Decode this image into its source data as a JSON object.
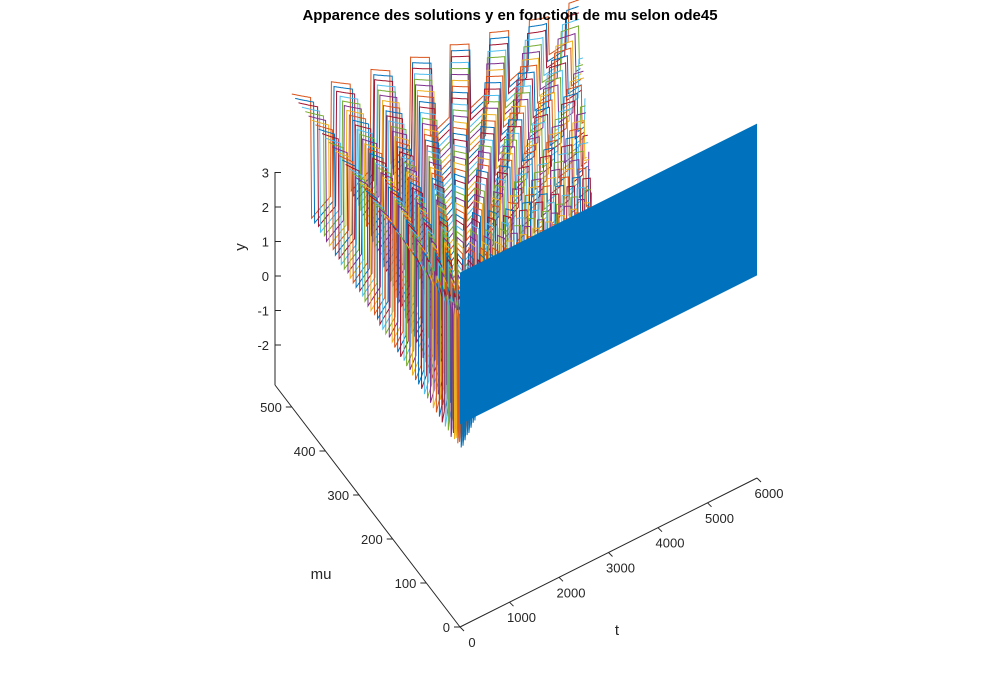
{
  "chart_data": {
    "type": "line",
    "title": "Apparence des solutions y en fonction de mu selon ode45",
    "xlabel": "t",
    "ylabel": "mu",
    "zlabel": "y",
    "xlim": [
      0,
      6000
    ],
    "ylim": [
      0,
      550
    ],
    "zlim": [
      -3,
      3
    ],
    "x_ticks": [
      "0",
      "1000",
      "2000",
      "3000",
      "4000",
      "5000",
      "6000"
    ],
    "y_ticks": [
      "0",
      "100",
      "200",
      "300",
      "400",
      "500"
    ],
    "z_ticks": [
      "-2",
      "-1",
      "0",
      "1",
      "2",
      "3"
    ],
    "series_description": "Van der Pol solutions y(t) for many mu values, one line per mu; solutions for large mu show relaxation oscillations with amplitude near 2; the front surface appears as a dense solid-colored block along the t-axis",
    "mu_values": [
      0,
      10,
      20,
      30,
      40,
      50,
      60,
      70,
      80,
      90,
      100,
      110,
      120,
      130,
      140,
      150,
      160,
      170,
      180,
      190,
      200,
      210,
      220,
      230,
      240,
      250,
      260,
      270,
      280,
      290,
      300,
      310,
      320,
      330,
      340,
      350,
      360,
      370,
      380,
      390,
      400,
      410,
      420,
      430,
      440,
      450,
      460,
      470,
      480,
      490,
      500
    ],
    "amplitude": 2,
    "grid": false,
    "colors": [
      "#0072BD",
      "#D95319",
      "#EDB120",
      "#7E2F8E",
      "#77AC30",
      "#4DBEEE",
      "#A2142F"
    ]
  }
}
